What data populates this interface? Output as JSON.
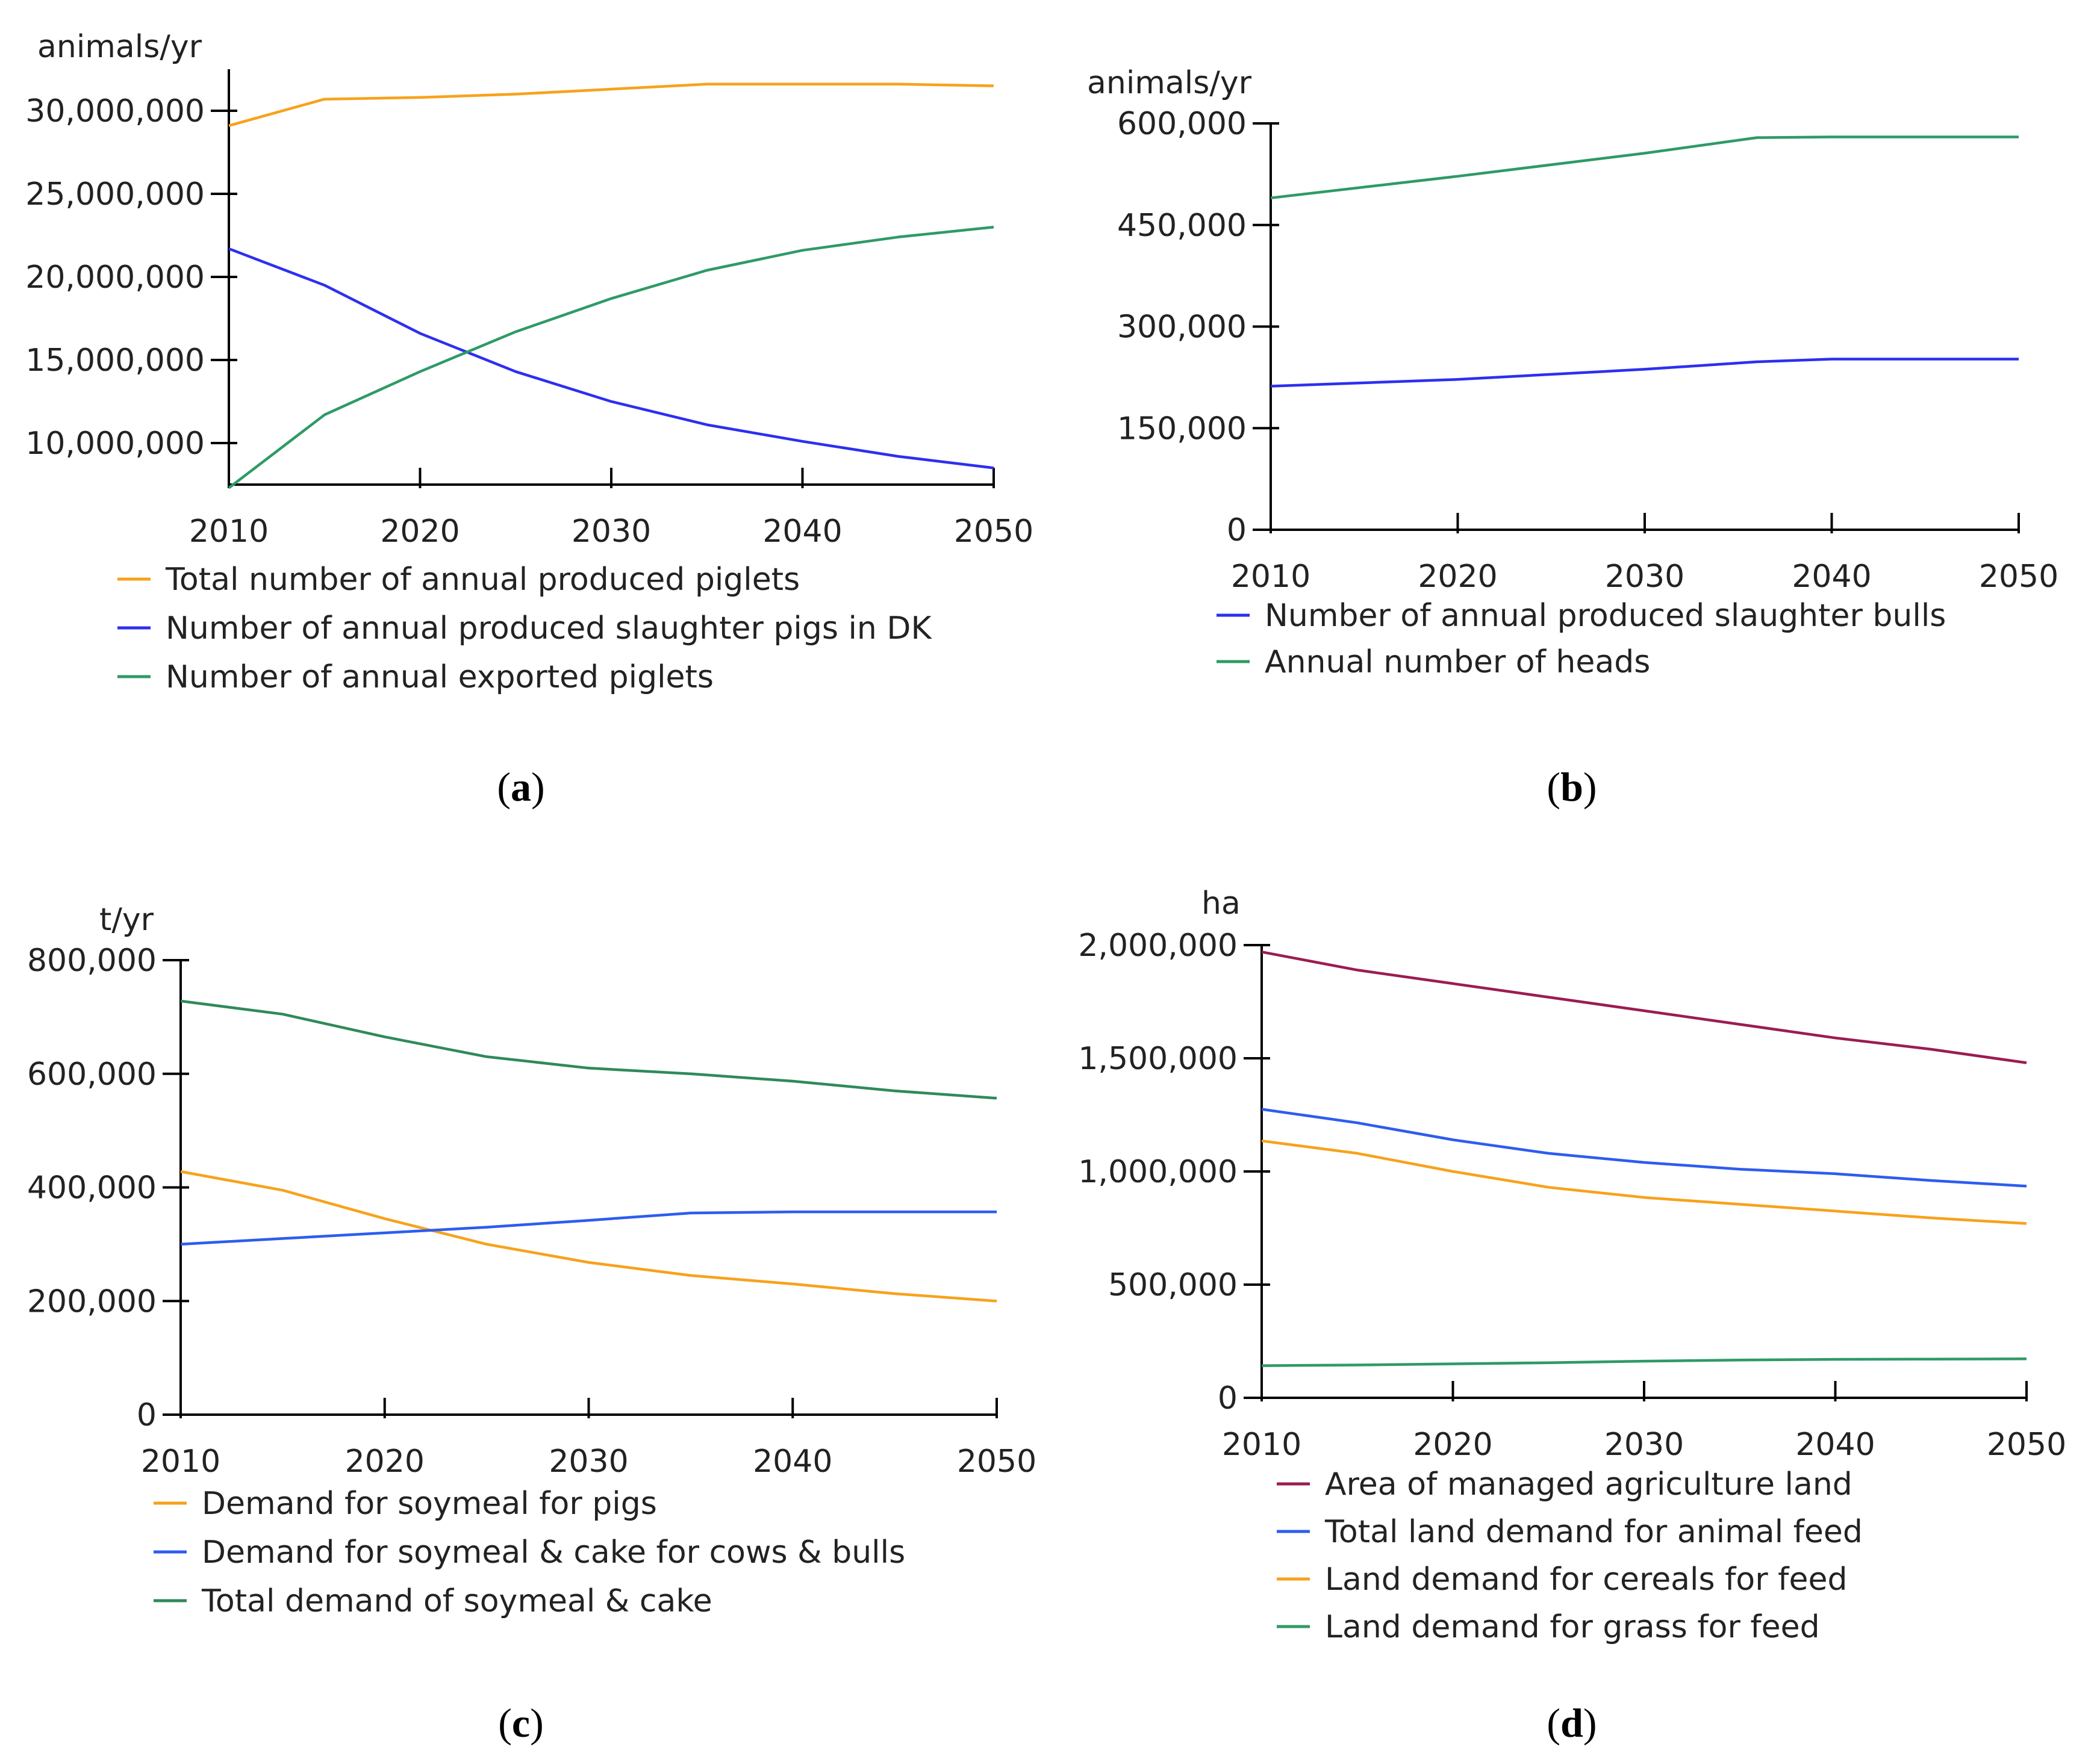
{
  "chart_data": [
    {
      "type": "line",
      "id": "a",
      "panel_label": "a",
      "unit": "animals/yr",
      "x": [
        2010,
        2015,
        2020,
        2025,
        2030,
        2035,
        2040,
        2045,
        2050
      ],
      "xlim": [
        2010,
        2050
      ],
      "x_ticks": [
        2010,
        2020,
        2030,
        2040,
        2050
      ],
      "x_tick_labels": [
        "2010",
        "2020",
        "2030",
        "2040",
        "2050"
      ],
      "ylim": [
        7500000,
        32500000
      ],
      "y_ticks": [
        10000000,
        15000000,
        20000000,
        25000000,
        30000000
      ],
      "y_tick_labels": [
        "10,000,000",
        "15,000,000",
        "20,000,000",
        "25,000,000",
        "30,000,000"
      ],
      "series": [
        {
          "name": "Total number of annual produced piglets",
          "color": "#f7a21b",
          "values": [
            29100000,
            30700000,
            30800000,
            31000000,
            31300000,
            31600000,
            31600000,
            31600000,
            31500000
          ]
        },
        {
          "name": "Number of annual produced slaughter pigs in DK",
          "color": "#2d2ff0",
          "values": [
            21700000,
            19500000,
            16600000,
            14300000,
            12500000,
            11100000,
            10100000,
            9200000,
            8500000
          ]
        },
        {
          "name": "Number of annual exported piglets",
          "color": "#2f9a66",
          "values": [
            7300000,
            11700000,
            14300000,
            16700000,
            18700000,
            20400000,
            21600000,
            22400000,
            23000000
          ]
        }
      ]
    },
    {
      "type": "line",
      "id": "b",
      "panel_label": "b",
      "unit": "animals/yr",
      "x": [
        2010,
        2020,
        2030,
        2036,
        2040,
        2050
      ],
      "xlim": [
        2010,
        2050
      ],
      "x_ticks": [
        2010,
        2020,
        2030,
        2040,
        2050
      ],
      "x_tick_labels": [
        "2010",
        "2020",
        "2030",
        "2040",
        "2050"
      ],
      "ylim": [
        0,
        600000
      ],
      "y_ticks": [
        0,
        150000,
        300000,
        450000,
        600000
      ],
      "y_tick_labels": [
        "0",
        "150,000",
        "300,000",
        "450,000",
        "600,000"
      ],
      "series": [
        {
          "name": "Number of annual produced slaughter bulls",
          "color": "#2d2ff0",
          "values": [
            212000,
            222000,
            237000,
            248000,
            252000,
            252000
          ]
        },
        {
          "name": "Annual number of heads",
          "color": "#2f9a66",
          "values": [
            490000,
            522000,
            556000,
            579000,
            580000,
            580000
          ]
        }
      ]
    },
    {
      "type": "line",
      "id": "c",
      "panel_label": "c",
      "unit": "t/yr",
      "x": [
        2010,
        2015,
        2020,
        2025,
        2030,
        2035,
        2040,
        2045,
        2050
      ],
      "xlim": [
        2010,
        2050
      ],
      "x_ticks": [
        2010,
        2020,
        2030,
        2040,
        2050
      ],
      "x_tick_labels": [
        "2010",
        "2020",
        "2030",
        "2040",
        "2050"
      ],
      "ylim": [
        0,
        800000
      ],
      "y_ticks": [
        0,
        200000,
        400000,
        600000,
        800000
      ],
      "y_tick_labels": [
        "0",
        "200,000",
        "400,000",
        "600,000",
        "800,000"
      ],
      "series": [
        {
          "name": "Demand for soymeal for pigs",
          "color": "#f7a21b",
          "values": [
            428000,
            395000,
            345000,
            300000,
            268000,
            245000,
            230000,
            213000,
            200000
          ]
        },
        {
          "name": "Demand for soymeal & cake for cows & bulls",
          "color": "#2d5cf0",
          "values": [
            300000,
            310000,
            320000,
            330000,
            342000,
            355000,
            357000,
            357000,
            357000
          ]
        },
        {
          "name": "Total demand of soymeal & cake",
          "color": "#2f8a5a",
          "values": [
            728000,
            705000,
            665000,
            630000,
            610000,
            600000,
            587000,
            570000,
            557000
          ]
        }
      ]
    },
    {
      "type": "line",
      "id": "d",
      "panel_label": "d",
      "unit": "ha",
      "x": [
        2010,
        2015,
        2020,
        2025,
        2030,
        2035,
        2040,
        2045,
        2050
      ],
      "xlim": [
        2010,
        2050
      ],
      "x_ticks": [
        2010,
        2020,
        2030,
        2040,
        2050
      ],
      "x_tick_labels": [
        "2010",
        "2020",
        "2030",
        "2040",
        "2050"
      ],
      "ylim": [
        0,
        2000000
      ],
      "y_ticks": [
        0,
        500000,
        1000000,
        1500000,
        2000000
      ],
      "y_tick_labels": [
        "0",
        "500,000",
        "1,000,000",
        "1,500,000",
        "2,000,000"
      ],
      "series": [
        {
          "name": "Area of managed agriculture land",
          "color": "#9b1c52",
          "values": [
            1970000,
            1890000,
            1830000,
            1770000,
            1710000,
            1650000,
            1590000,
            1540000,
            1480000
          ]
        },
        {
          "name": "Total land demand for animal feed",
          "color": "#2d5cf0",
          "values": [
            1275000,
            1215000,
            1140000,
            1080000,
            1040000,
            1010000,
            990000,
            960000,
            935000
          ]
        },
        {
          "name": "Land demand for cereals for feed",
          "color": "#f7a21b",
          "values": [
            1135000,
            1080000,
            1000000,
            930000,
            885000,
            855000,
            825000,
            795000,
            770000
          ]
        },
        {
          "name": "Land demand for grass for feed",
          "color": "#2f9a66",
          "values": [
            142000,
            145000,
            150000,
            155000,
            162000,
            167000,
            170000,
            171000,
            172000
          ]
        }
      ]
    }
  ]
}
